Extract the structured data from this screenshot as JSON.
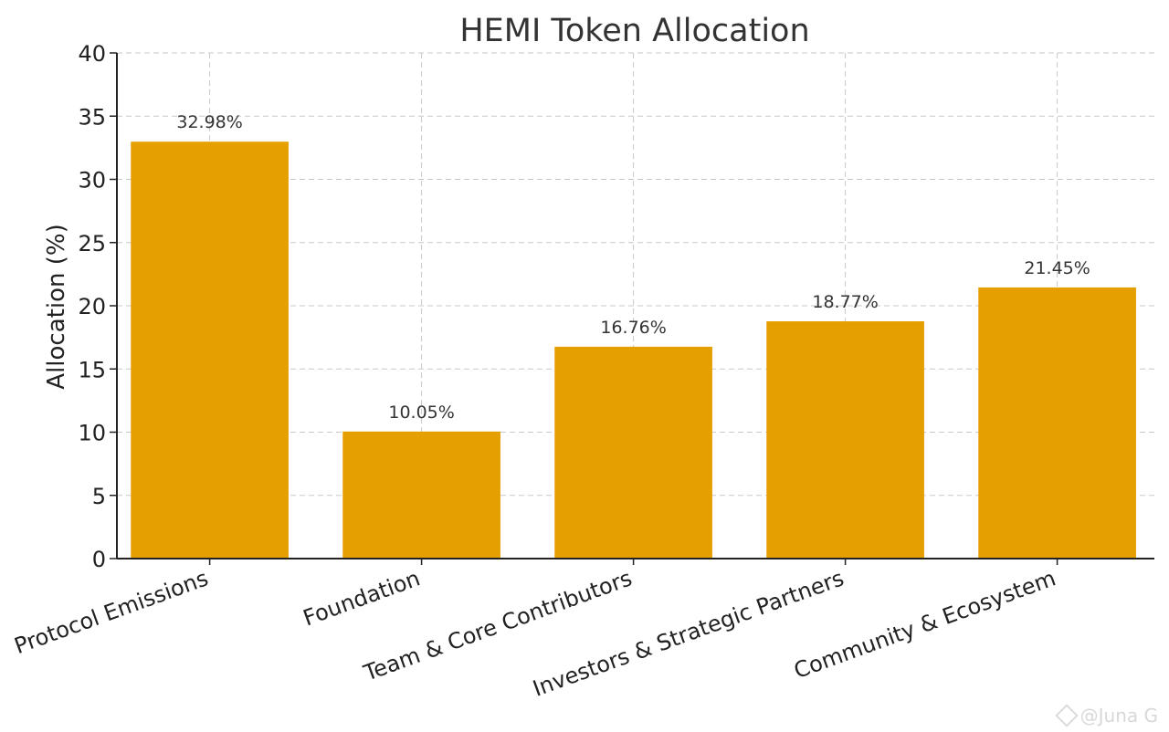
{
  "chart_data": {
    "type": "bar",
    "title": "HEMI Token Allocation",
    "xlabel": "",
    "ylabel": "Allocation (%)",
    "categories": [
      "Protocol Emissions",
      "Foundation",
      "Team & Core Contributors",
      "Investors & Strategic Partners",
      "Community & Ecosystem"
    ],
    "values": [
      32.98,
      10.05,
      16.76,
      18.77,
      21.45
    ],
    "data_labels": [
      "32.98%",
      "10.05%",
      "16.76%",
      "18.77%",
      "21.45%"
    ],
    "ylim": [
      0,
      40
    ],
    "yticks": [
      0,
      5,
      10,
      15,
      20,
      25,
      30,
      35,
      40
    ],
    "bar_color": "#E69F00",
    "grid": true,
    "grid_style": "dashed"
  },
  "watermark": {
    "text": "@Juna G",
    "icon": "binance-diamond-icon"
  }
}
